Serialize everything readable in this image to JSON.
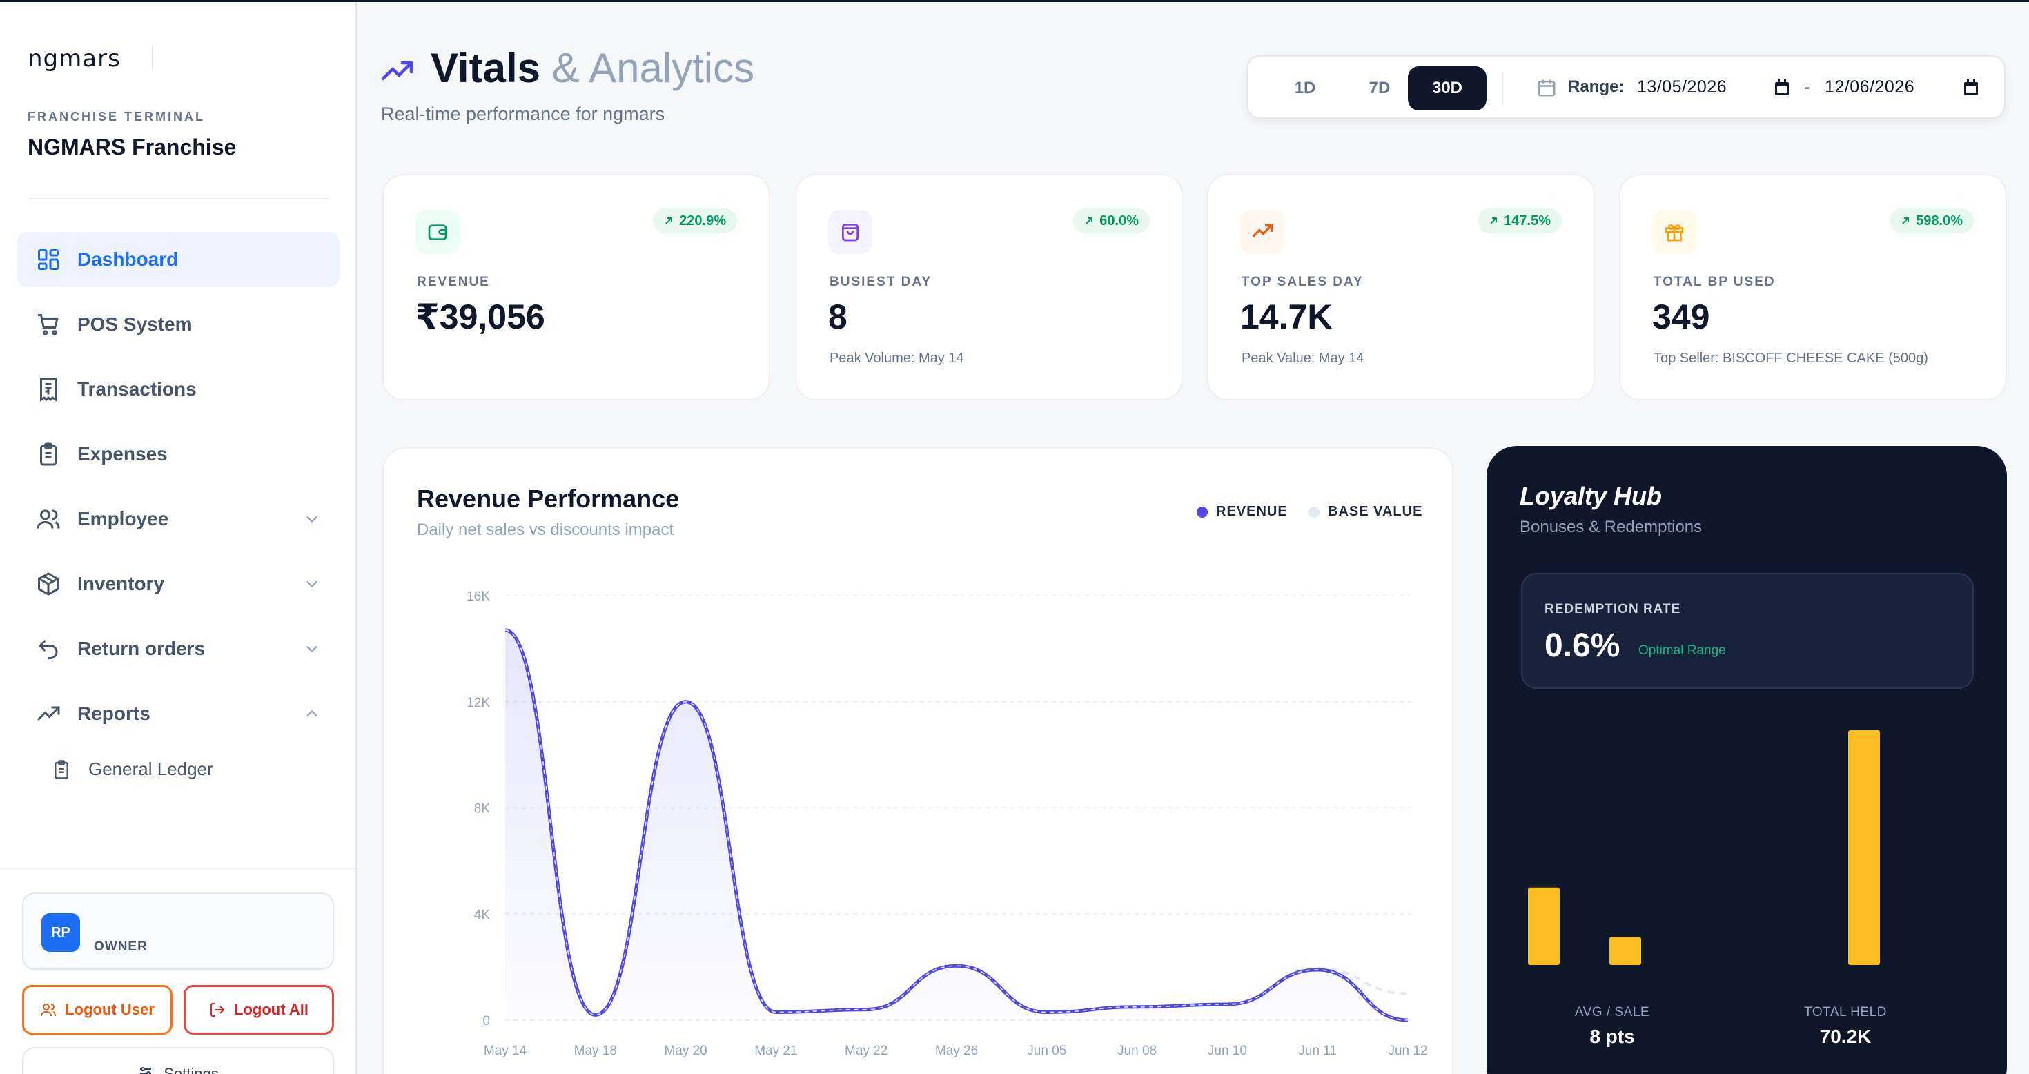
{
  "sidebar": {
    "logo": "ngmars",
    "franchise_label": "FRANCHISE TERMINAL",
    "franchise_name": "NGMARS Franchise",
    "nav": [
      {
        "label": "Dashboard",
        "icon": "grid-icon",
        "active": true
      },
      {
        "label": "POS System",
        "icon": "cart-icon"
      },
      {
        "label": "Transactions",
        "icon": "receipt-icon"
      },
      {
        "label": "Expenses",
        "icon": "clipboard-icon"
      },
      {
        "label": "Employee",
        "icon": "users-icon",
        "expandable": true
      },
      {
        "label": "Inventory",
        "icon": "box-icon",
        "expandable": true
      },
      {
        "label": "Return orders",
        "icon": "undo-icon",
        "expandable": true
      },
      {
        "label": "Reports",
        "icon": "trending-up-icon",
        "expandable": true,
        "expanded": true
      }
    ],
    "sub_item": "General Ledger",
    "user": {
      "initials": "RP",
      "role": "OWNER"
    },
    "logout_user": "Logout User",
    "logout_all": "Logout All",
    "settings": "Settings"
  },
  "header": {
    "title_bold": "Vitals",
    "title_light": "& Analytics",
    "subtitle": "Real-time performance for ngmars",
    "periods": [
      "1D",
      "7D",
      "30D"
    ],
    "active_period": "30D",
    "range_label": "Range:",
    "range_from": "13/05/2026",
    "range_sep": "-",
    "range_to": "12/06/2026"
  },
  "stats": [
    {
      "label": "REVENUE",
      "value": "₹39,056",
      "change": "220.9%",
      "note": "",
      "icon": "wallet-icon",
      "color": "#059669",
      "bg": "#ecfdf5"
    },
    {
      "label": "BUSIEST DAY",
      "value": "8",
      "change": "60.0%",
      "note": "Peak Volume: May 14",
      "icon": "shopping-bag-icon",
      "color": "#7c3aed",
      "bg": "#f5f3ff"
    },
    {
      "label": "TOP SALES DAY",
      "value": "14.7K",
      "change": "147.5%",
      "note": "Peak Value: May 14",
      "icon": "trending-up-icon",
      "color": "#ea580c",
      "bg": "#fff7ed"
    },
    {
      "label": "TOTAL BP USED",
      "value": "349",
      "change": "598.0%",
      "note": "Top Seller: BISCOFF CHEESE CAKE (500g)",
      "icon": "gift-icon",
      "color": "#f59e0b",
      "bg": "#fffbeb"
    }
  ],
  "revenue_chart": {
    "title": "Revenue Performance",
    "subtitle": "Daily net sales vs discounts impact",
    "legend": [
      "REVENUE",
      "BASE VALUE"
    ],
    "colors": {
      "revenue": "#4f46e5",
      "base": "#e2e8f0"
    }
  },
  "chart_data": {
    "type": "line",
    "categories": [
      "May 14",
      "May 18",
      "May 20",
      "May 21",
      "May 22",
      "May 26",
      "Jun 05",
      "Jun 08",
      "Jun 10",
      "Jun 11",
      "Jun 12"
    ],
    "series": [
      {
        "name": "REVENUE",
        "values": [
          14700,
          200,
          12000,
          300,
          400,
          2050,
          300,
          500,
          600,
          1900,
          0
        ]
      },
      {
        "name": "BASE VALUE",
        "values": [
          14700,
          200,
          12000,
          300,
          400,
          2050,
          300,
          500,
          600,
          1950,
          1000
        ]
      }
    ],
    "y_ticks": [
      "0",
      "4K",
      "8K",
      "12K",
      "16K"
    ],
    "ylim": [
      0,
      16000
    ]
  },
  "loyalty": {
    "title": "Loyalty Hub",
    "subtitle": "Bonuses & Redemptions",
    "redemption_label": "REDEMPTION RATE",
    "redemption_value": "0.6%",
    "redemption_tag": "Optimal Range",
    "bars": [
      0.33,
      0.12,
      1.0
    ],
    "bar_color": "#fbbf24",
    "avg_label": "AVG / SALE",
    "avg_value": "8 pts",
    "held_label": "TOTAL HELD",
    "held_value": "70.2K"
  }
}
